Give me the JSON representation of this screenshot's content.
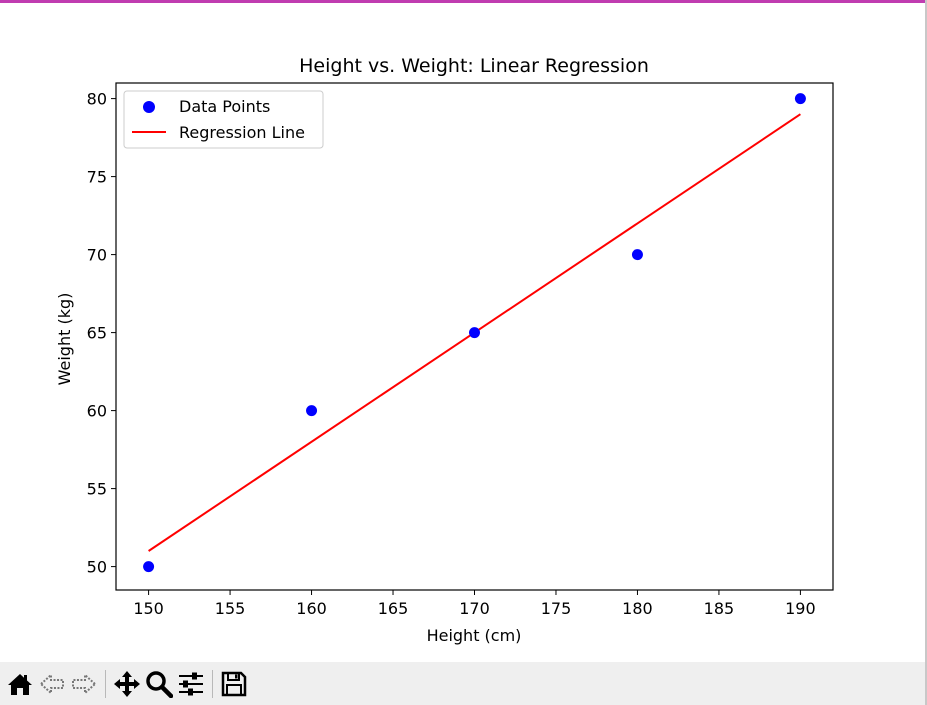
{
  "chart_data": {
    "type": "scatter",
    "title": "Height vs. Weight: Linear Regression",
    "xlabel": "Height (cm)",
    "ylabel": "Weight (kg)",
    "xlim": [
      148,
      192
    ],
    "ylim": [
      48.5,
      81
    ],
    "xticks": [
      150,
      155,
      160,
      165,
      170,
      175,
      180,
      185,
      190
    ],
    "yticks": [
      50,
      55,
      60,
      65,
      70,
      75,
      80
    ],
    "series": [
      {
        "name": "Data Points",
        "kind": "scatter",
        "color": "#0000ff",
        "x": [
          150,
          160,
          170,
          180,
          190
        ],
        "y": [
          50,
          60,
          65,
          70,
          80
        ]
      },
      {
        "name": "Regression Line",
        "kind": "line",
        "color": "#ff0000",
        "x": [
          150,
          190
        ],
        "y": [
          51,
          79
        ]
      }
    ],
    "legend": "top-left",
    "grid": false
  },
  "toolbar": {
    "items": [
      "home-icon",
      "back-icon",
      "forward-icon",
      "pan-icon",
      "zoom-icon",
      "configure-subplots-icon",
      "save-icon"
    ]
  }
}
